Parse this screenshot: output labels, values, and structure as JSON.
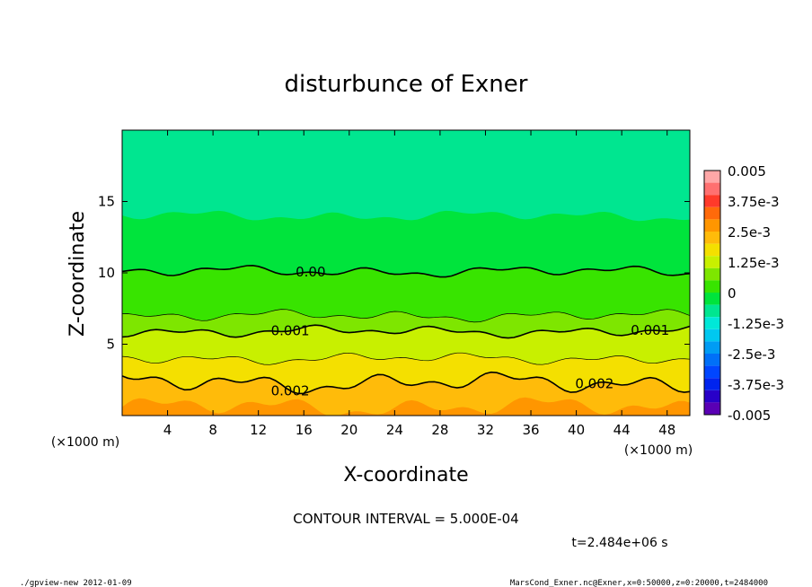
{
  "chart_data": {
    "type": "contour",
    "title": "disturbunce of Exner",
    "xlabel": "X-coordinate",
    "ylabel": "Z-coordinate",
    "x_unit": "(×1000 m)",
    "y_unit": "(×1000 m)",
    "xlim": [
      0,
      50
    ],
    "ylim": [
      0,
      20
    ],
    "x_ticks": [
      4,
      8,
      12,
      16,
      20,
      24,
      28,
      32,
      36,
      40,
      44,
      48
    ],
    "y_ticks": [
      5,
      10,
      15
    ],
    "colorbar": {
      "labels": [
        "0.005",
        "3.75e-3",
        "2.5e-3",
        "1.25e-3",
        "0",
        "-1.25e-3",
        "-2.5e-3",
        "-3.75e-3",
        "-0.005"
      ],
      "label_values": [
        0.005,
        0.00375,
        0.0025,
        0.00125,
        0,
        -0.00125,
        -0.0025,
        -0.00375,
        -0.005
      ],
      "levels": [
        {
          "lo": 0.0045,
          "hi": 0.005,
          "color": "#ffa7a7"
        },
        {
          "lo": 0.004,
          "hi": 0.0045,
          "color": "#ff7070"
        },
        {
          "lo": 0.0035,
          "hi": 0.004,
          "color": "#ff3a2a"
        },
        {
          "lo": 0.003,
          "hi": 0.0035,
          "color": "#ff6a0a"
        },
        {
          "lo": 0.0025,
          "hi": 0.003,
          "color": "#ff9600"
        },
        {
          "lo": 0.002,
          "hi": 0.0025,
          "color": "#ffbb0a"
        },
        {
          "lo": 0.0015,
          "hi": 0.002,
          "color": "#f4e000"
        },
        {
          "lo": 0.001,
          "hi": 0.0015,
          "color": "#c8f000"
        },
        {
          "lo": 0.0005,
          "hi": 0.001,
          "color": "#7ee600"
        },
        {
          "lo": 0.0,
          "hi": 0.0005,
          "color": "#38e400"
        },
        {
          "lo": -0.0005,
          "hi": 0.0,
          "color": "#00e43c"
        },
        {
          "lo": -0.001,
          "hi": -0.0005,
          "color": "#00e690"
        },
        {
          "lo": -0.0015,
          "hi": -0.001,
          "color": "#00e8d8"
        },
        {
          "lo": -0.002,
          "hi": -0.0015,
          "color": "#00c8f0"
        },
        {
          "lo": -0.0025,
          "hi": -0.002,
          "color": "#009cf4"
        },
        {
          "lo": -0.003,
          "hi": -0.0025,
          "color": "#0070f8"
        },
        {
          "lo": -0.0035,
          "hi": -0.003,
          "color": "#0046ff"
        },
        {
          "lo": -0.004,
          "hi": -0.0035,
          "color": "#0024ee"
        },
        {
          "lo": -0.0045,
          "hi": -0.004,
          "color": "#2800c8"
        },
        {
          "lo": -0.005,
          "hi": -0.0045,
          "color": "#5a00b4"
        }
      ]
    },
    "contour_lines": [
      {
        "label": "0.00",
        "value": 0.0,
        "z_base": 10.1,
        "width": 1.6,
        "label_x": 16.6
      },
      {
        "label": "",
        "value": 0.0005,
        "z_base": 7.0,
        "width": 0.7
      },
      {
        "label": "0.001",
        "value": 0.001,
        "z_base": 5.9,
        "width": 1.6,
        "label_x": 14.8
      },
      {
        "label": "0.001",
        "value": 0.001,
        "z_base": 5.9,
        "width": 0,
        "label_x": 46.5
      },
      {
        "label": "",
        "value": 0.0015,
        "z_base": 4.0,
        "width": 0.7
      },
      {
        "label": "0.002",
        "value": 0.002,
        "z_base": 2.3,
        "width": 1.6,
        "label_x": 14.8
      },
      {
        "label": "0.002",
        "value": 0.002,
        "z_base": 2.3,
        "width": 0,
        "label_x": 41.6
      }
    ],
    "contour_interval_text": "CONTOUR INTERVAL = 5.000E-04",
    "time_text": "t=2.484e+06 s"
  },
  "footer": {
    "left": "./gpview-new  2012-01-09",
    "right": "MarsCond_Exner.nc@Exner,x=0:50000,z=0:20000,t=2484000"
  }
}
